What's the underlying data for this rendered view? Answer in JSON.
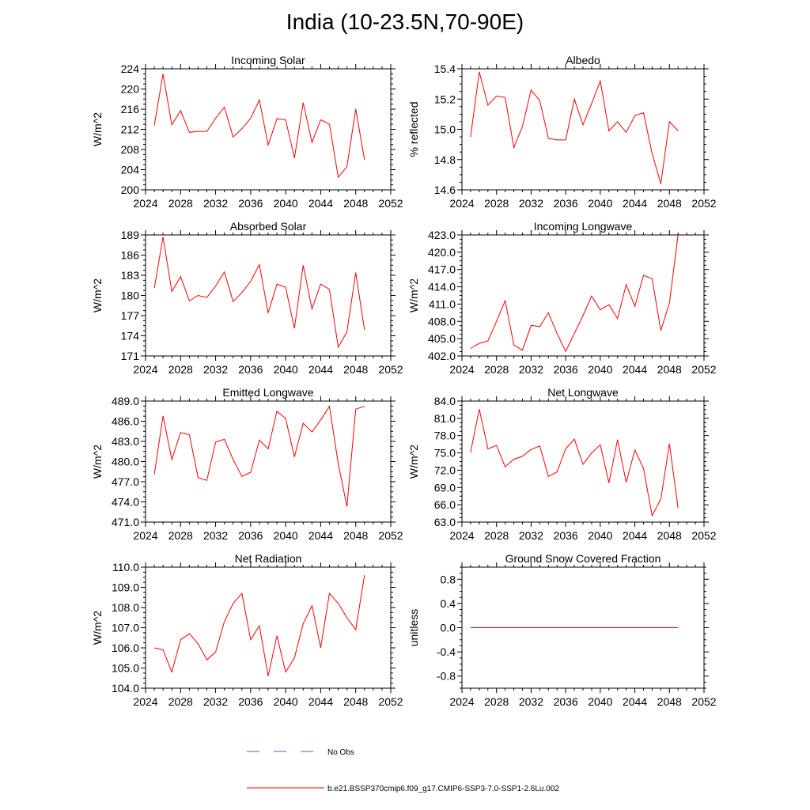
{
  "page": {
    "title": "India (10-23.5N,70-90E)"
  },
  "legend": {
    "obs_label": "No Obs",
    "model_label": "b.e21.BSSP370cmip6.f09_g17.CMIP6-SSP3-7.0-SSP1-2.6Lu.002",
    "obs_color": "#5555cc",
    "model_color": "#ff0000"
  },
  "chart_data": [
    {
      "type": "line",
      "title": "Incoming Solar",
      "ylabel": "W/m^2",
      "xlim": [
        2024,
        2052
      ],
      "ylim": [
        200,
        224
      ],
      "xticks": [
        "2024",
        "2028",
        "2032",
        "2036",
        "2040",
        "2044",
        "2048",
        "2052"
      ],
      "yticks": [
        "200",
        "204",
        "208",
        "212",
        "216",
        "220",
        "224"
      ],
      "x": [
        2025,
        2026,
        2027,
        2028,
        2029,
        2030,
        2031,
        2032,
        2033,
        2034,
        2035,
        2036,
        2037,
        2038,
        2039,
        2040,
        2041,
        2042,
        2043,
        2044,
        2045,
        2046,
        2047,
        2048,
        2049
      ],
      "values": [
        212.8,
        223.0,
        212.9,
        215.7,
        211.4,
        211.6,
        211.6,
        214.2,
        216.4,
        210.5,
        212.1,
        214.2,
        217.8,
        208.9,
        214.1,
        213.9,
        206.3,
        217.3,
        209.4,
        213.9,
        213.0,
        202.5,
        204.6,
        216.0,
        206.0
      ]
    },
    {
      "type": "line",
      "title": "Albedo",
      "ylabel": "% reflected",
      "xlim": [
        2024,
        2052
      ],
      "ylim": [
        14.6,
        15.4
      ],
      "xticks": [
        "2024",
        "2028",
        "2032",
        "2036",
        "2040",
        "2044",
        "2048",
        "2052"
      ],
      "yticks": [
        "14.6",
        "14.8",
        "15.0",
        "15.2",
        "15.4"
      ],
      "x": [
        2025,
        2026,
        2027,
        2028,
        2029,
        2030,
        2031,
        2032,
        2033,
        2034,
        2035,
        2036,
        2037,
        2038,
        2039,
        2040,
        2041,
        2042,
        2043,
        2044,
        2045,
        2046,
        2047,
        2048,
        2049
      ],
      "values": [
        14.95,
        15.38,
        15.16,
        15.22,
        15.21,
        14.88,
        15.02,
        15.26,
        15.19,
        14.94,
        14.93,
        14.93,
        15.2,
        15.03,
        15.17,
        15.32,
        14.99,
        15.05,
        14.98,
        15.09,
        15.11,
        14.84,
        14.64,
        15.05,
        14.99
      ]
    },
    {
      "type": "line",
      "title": "Absorbed Solar",
      "ylabel": "W/m^2",
      "xlim": [
        2024,
        2052
      ],
      "ylim": [
        171,
        189
      ],
      "xticks": [
        "2024",
        "2028",
        "2032",
        "2036",
        "2040",
        "2044",
        "2048",
        "2052"
      ],
      "yticks": [
        "171",
        "174",
        "177",
        "180",
        "183",
        "186",
        "189"
      ],
      "x": [
        2025,
        2026,
        2027,
        2028,
        2029,
        2030,
        2031,
        2032,
        2033,
        2034,
        2035,
        2036,
        2037,
        2038,
        2039,
        2040,
        2041,
        2042,
        2043,
        2044,
        2045,
        2046,
        2047,
        2048,
        2049
      ],
      "values": [
        181.1,
        188.7,
        180.6,
        182.8,
        179.2,
        180.0,
        179.7,
        181.4,
        183.5,
        179.1,
        180.4,
        182.1,
        184.6,
        177.4,
        181.7,
        181.2,
        175.1,
        184.5,
        178.0,
        181.7,
        180.9,
        172.3,
        174.6,
        183.4,
        174.9
      ]
    },
    {
      "type": "line",
      "title": "Incoming Longwave",
      "ylabel": "W/m^2",
      "xlim": [
        2024,
        2052
      ],
      "ylim": [
        402.0,
        423.0
      ],
      "xticks": [
        "2024",
        "2028",
        "2032",
        "2036",
        "2040",
        "2044",
        "2048",
        "2052"
      ],
      "yticks": [
        "402.0",
        "405.0",
        "408.0",
        "411.0",
        "414.0",
        "417.0",
        "420.0",
        "423.0"
      ],
      "x": [
        2025,
        2026,
        2027,
        2028,
        2029,
        2030,
        2031,
        2032,
        2033,
        2034,
        2035,
        2036,
        2037,
        2038,
        2039,
        2040,
        2041,
        2042,
        2043,
        2044,
        2045,
        2046,
        2047,
        2048,
        2049
      ],
      "values": [
        403.3,
        404.2,
        404.6,
        408.0,
        411.6,
        403.9,
        403.0,
        407.3,
        407.1,
        409.5,
        405.9,
        402.8,
        405.9,
        409.0,
        412.4,
        410.0,
        410.9,
        408.5,
        414.4,
        410.6,
        416.0,
        415.4,
        406.4,
        411.2,
        423.0
      ]
    },
    {
      "type": "line",
      "title": "Emitted Longwave",
      "ylabel": "W/m^2",
      "xlim": [
        2024,
        2052
      ],
      "ylim": [
        471.0,
        489.0
      ],
      "xticks": [
        "2024",
        "2028",
        "2032",
        "2036",
        "2040",
        "2044",
        "2048",
        "2052"
      ],
      "yticks": [
        "471.0",
        "474.0",
        "477.0",
        "480.0",
        "483.0",
        "486.0",
        "489.0"
      ],
      "x": [
        2025,
        2026,
        2027,
        2028,
        2029,
        2030,
        2031,
        2032,
        2033,
        2034,
        2035,
        2036,
        2037,
        2038,
        2039,
        2040,
        2041,
        2042,
        2043,
        2044,
        2045,
        2046,
        2047,
        2048,
        2049
      ],
      "values": [
        478.1,
        486.8,
        480.3,
        484.3,
        484.0,
        477.6,
        477.2,
        482.9,
        483.3,
        480.3,
        477.8,
        478.4,
        483.2,
        481.9,
        487.5,
        486.4,
        480.7,
        485.7,
        484.4,
        486.2,
        488.2,
        479.7,
        473.3,
        487.8,
        488.2
      ]
    },
    {
      "type": "line",
      "title": "Net Longwave",
      "ylabel": "W/m^2",
      "xlim": [
        2024,
        2052
      ],
      "ylim": [
        63.0,
        84.0
      ],
      "xticks": [
        "2024",
        "2028",
        "2032",
        "2036",
        "2040",
        "2044",
        "2048",
        "2052"
      ],
      "yticks": [
        "63.0",
        "66.0",
        "69.0",
        "72.0",
        "75.0",
        "78.0",
        "81.0",
        "84.0"
      ],
      "x": [
        2025,
        2026,
        2027,
        2028,
        2029,
        2030,
        2031,
        2032,
        2033,
        2034,
        2035,
        2036,
        2037,
        2038,
        2039,
        2040,
        2041,
        2042,
        2043,
        2044,
        2045,
        2046,
        2047,
        2048,
        2049
      ],
      "values": [
        75.1,
        82.6,
        75.7,
        76.3,
        72.6,
        73.9,
        74.4,
        75.6,
        76.2,
        70.9,
        71.7,
        75.7,
        77.4,
        73.0,
        75.0,
        76.4,
        69.8,
        77.3,
        69.9,
        75.5,
        72.3,
        64.1,
        67.0,
        76.6,
        65.4
      ]
    },
    {
      "type": "line",
      "title": "Net Radiation",
      "ylabel": "W/m^2",
      "xlim": [
        2024,
        2052
      ],
      "ylim": [
        104.0,
        110.0
      ],
      "xticks": [
        "2024",
        "2028",
        "2032",
        "2036",
        "2040",
        "2044",
        "2048",
        "2052"
      ],
      "yticks": [
        "104.0",
        "105.0",
        "106.0",
        "107.0",
        "108.0",
        "109.0",
        "110.0"
      ],
      "x": [
        2025,
        2026,
        2027,
        2028,
        2029,
        2030,
        2031,
        2032,
        2033,
        2034,
        2035,
        2036,
        2037,
        2038,
        2039,
        2040,
        2041,
        2042,
        2043,
        2044,
        2045,
        2046,
        2047,
        2048,
        2049
      ],
      "values": [
        106.0,
        105.9,
        104.8,
        106.4,
        106.7,
        106.2,
        105.4,
        105.8,
        107.3,
        108.2,
        108.7,
        106.4,
        107.1,
        104.6,
        106.6,
        104.8,
        105.5,
        107.2,
        108.1,
        106.0,
        108.7,
        108.2,
        107.5,
        106.9,
        109.6
      ]
    },
    {
      "type": "line",
      "title": "Ground Snow Covered Fraction",
      "ylabel": "unitless",
      "xlim": [
        2024,
        2052
      ],
      "ylim": [
        -1.0,
        1.0
      ],
      "xticks": [
        "2024",
        "2028",
        "2032",
        "2036",
        "2040",
        "2044",
        "2048",
        "2052"
      ],
      "yticks": [
        "-0.8",
        "-0.4",
        "0.0",
        "0.4",
        "0.8"
      ],
      "ytick_values": [
        -0.8,
        -0.4,
        0.0,
        0.4,
        0.8
      ],
      "x": [
        2025,
        2026,
        2027,
        2028,
        2029,
        2030,
        2031,
        2032,
        2033,
        2034,
        2035,
        2036,
        2037,
        2038,
        2039,
        2040,
        2041,
        2042,
        2043,
        2044,
        2045,
        2046,
        2047,
        2048,
        2049
      ],
      "values": [
        0.0,
        0.0,
        0.0,
        0.0,
        0.0,
        0.0,
        0.0,
        0.0,
        0.0,
        0.0,
        0.0,
        0.0,
        0.0,
        0.0,
        0.0,
        0.0,
        0.0,
        0.0,
        0.0,
        0.0,
        0.0,
        0.0,
        0.0,
        0.0,
        0.0
      ]
    }
  ]
}
